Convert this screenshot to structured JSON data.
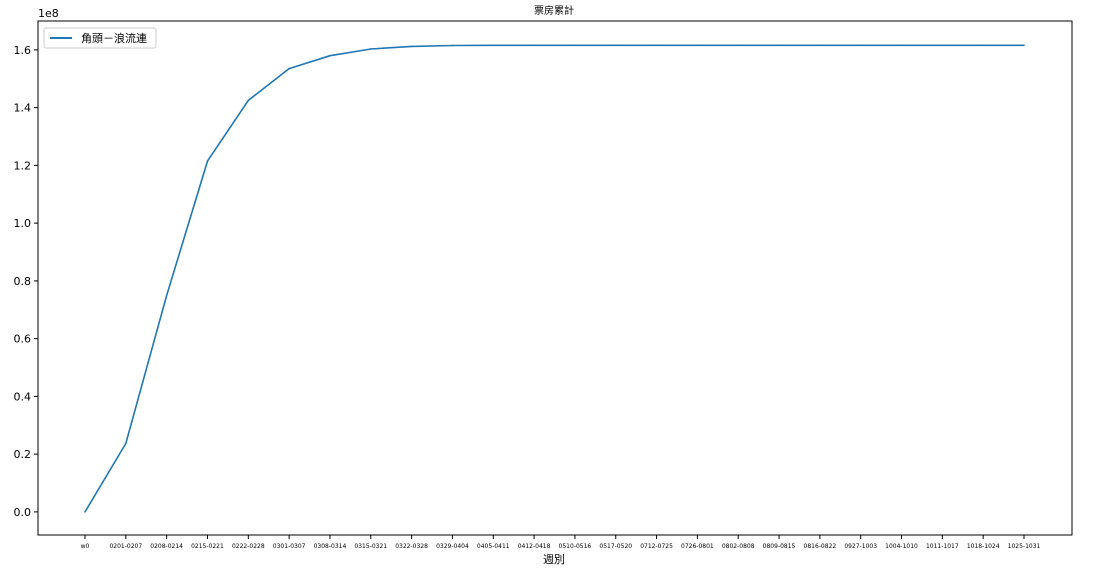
{
  "chart_data": {
    "type": "line",
    "title": "票房累計",
    "xlabel": "週別",
    "ylabel": "",
    "y_offset_label": "1e8",
    "categories": [
      "w0",
      "0201-0207",
      "0208-0214",
      "0215-0221",
      "0222-0228",
      "0301-0307",
      "0308-0314",
      "0315-0321",
      "0322-0328",
      "0329-0404",
      "0405-0411",
      "0412-0418",
      "0510-0516",
      "0517-0520",
      "0712-0725",
      "0726-0801",
      "0802-0808",
      "0809-0815",
      "0816-0822",
      "0927-1003",
      "1004-1010",
      "1011-1017",
      "1018-1024",
      "1025-1031"
    ],
    "series": [
      {
        "name": "角頭－浪流連",
        "color": "#1f77b4",
        "values": [
          0.0,
          0.237,
          0.75,
          1.215,
          1.425,
          1.535,
          1.58,
          1.603,
          1.612,
          1.615,
          1.616,
          1.616,
          1.616,
          1.616,
          1.616,
          1.616,
          1.616,
          1.616,
          1.616,
          1.616,
          1.616,
          1.616,
          1.616,
          1.616
        ]
      }
    ],
    "y_unit_multiplier": 100000000,
    "ylim": [
      -0.08,
      1.7
    ],
    "yticks": [
      "0.0",
      "0.2",
      "0.4",
      "0.6",
      "0.8",
      "1.0",
      "1.2",
      "1.4",
      "1.6"
    ],
    "grid": false,
    "legend_position": "upper-left"
  }
}
